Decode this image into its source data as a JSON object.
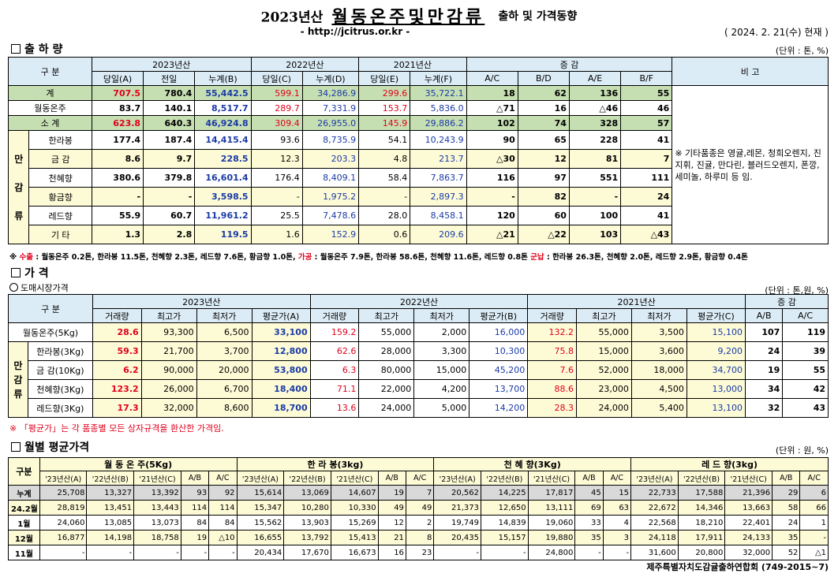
{
  "header": {
    "year_label": "2023년산",
    "main_title": "월동온주및만감류",
    "sub_title": "출하 및 가격동향",
    "url": "- http://jcitrus.or.kr -",
    "date": "( 2024.  2. 21(수) 현재 )"
  },
  "shipment": {
    "section_title": "출 하 량",
    "unit": "(단위 : 톤, %)",
    "h_gubun": "구  분",
    "h_2023": "2023년산",
    "h_2022": "2022년산",
    "h_2021": "2021년산",
    "h_change": "증    감",
    "h_note": "비 고",
    "cols": [
      "당일(A)",
      "전일",
      "누계(B)",
      "당일(C)",
      "누계(D)",
      "당일(E)",
      "누계(F)",
      "A/C",
      "B/D",
      "A/E",
      "B/F"
    ],
    "side_label": "만감류",
    "rows": [
      {
        "label": "계",
        "v": [
          "707.5",
          "780.4",
          "55,442.5",
          "599.1",
          "34,286.9",
          "299.6",
          "35,722.1",
          "18",
          "62",
          "136",
          "55"
        ]
      },
      {
        "label": "월동온주",
        "v": [
          "83.7",
          "140.1",
          "8,517.7",
          "289.7",
          "7,331.9",
          "153.7",
          "5,836.0",
          "△71",
          "16",
          "△46",
          "46"
        ]
      },
      {
        "label": "소  계",
        "v": [
          "623.8",
          "640.3",
          "46,924.8",
          "309.4",
          "26,955.0",
          "145.9",
          "29,886.2",
          "102",
          "74",
          "328",
          "57"
        ]
      },
      {
        "label": "한라봉",
        "v": [
          "177.4",
          "187.4",
          "14,415.4",
          "93.6",
          "8,735.9",
          "54.1",
          "10,243.9",
          "90",
          "65",
          "228",
          "41"
        ]
      },
      {
        "label": "금  감",
        "v": [
          "8.6",
          "9.7",
          "228.5",
          "12.3",
          "203.3",
          "4.8",
          "213.7",
          "△30",
          "12",
          "81",
          "7"
        ]
      },
      {
        "label": "천혜향",
        "v": [
          "380.6",
          "379.8",
          "16,601.4",
          "176.4",
          "8,409.1",
          "58.4",
          "7,863.7",
          "116",
          "97",
          "551",
          "111"
        ]
      },
      {
        "label": "황금향",
        "v": [
          "-",
          "-",
          "3,598.5",
          "-",
          "1,975.2",
          "-",
          "2,897.3",
          "-",
          "82",
          "-",
          "24"
        ]
      },
      {
        "label": "레드향",
        "v": [
          "55.9",
          "60.7",
          "11,961.2",
          "25.5",
          "7,478.6",
          "28.0",
          "8,458.1",
          "120",
          "60",
          "100",
          "41"
        ]
      },
      {
        "label": "기  타",
        "v": [
          "1.3",
          "2.8",
          "119.5",
          "1.6",
          "152.9",
          "0.6",
          "209.6",
          "△21",
          "△22",
          "103",
          "△43"
        ]
      }
    ],
    "remark": "※ 기타품종은 영귤,레몬, 청희오렌지, 진지휘, 진귤, 만다린, 블러드오렌지, 폰깡,세미놀, 하루미 등 임."
  },
  "export_note": {
    "p1": "※ ",
    "k1": "수출",
    "t1": " : 월동온주 0.2톤, 한라봉 11.5톤, 천혜향 2.3톤, 레드향 7.6톤, 황금향 1.0톤, ",
    "k2": "가공",
    "t2": " : 월동온주 7.9톤, 한라봉 58.6톤, 천혜향 11.6톤, 레드향 0.8톤 ",
    "k3": "군납",
    "t3": " : 한라봉 26.3톤, 천혜향 2.0톤, 레드향 2.9톤, 황금향 0.4톤"
  },
  "price": {
    "section_title": "가    격",
    "sub_title": "도매시장가격",
    "unit": "(단위 : 톤,원, %)",
    "h_gubun": "구  분",
    "h_2023": "2023년산",
    "h_2022": "2022년산",
    "h_2021": "2021년산",
    "h_change": "증   감",
    "cols": [
      "거래량",
      "최고가",
      "최저가",
      "평균가(A)",
      "거래량",
      "최고가",
      "최저가",
      "평균가(B)",
      "거래량",
      "최고가",
      "최저가",
      "평균가(C)",
      "A/B",
      "A/C"
    ],
    "side_label": "만감류",
    "rows": [
      {
        "label": "월동온주(5Kg)",
        "v": [
          "28.6",
          "93,300",
          "6,500",
          "33,100",
          "159.2",
          "55,000",
          "2,000",
          "16,000",
          "132.2",
          "55,000",
          "3,500",
          "15,100",
          "107",
          "119"
        ]
      },
      {
        "label": "한라봉(3Kg)",
        "v": [
          "59.3",
          "21,700",
          "3,700",
          "12,800",
          "62.6",
          "28,000",
          "3,300",
          "10,300",
          "75.8",
          "15,000",
          "3,600",
          "9,200",
          "24",
          "39"
        ]
      },
      {
        "label": "금 감(10Kg)",
        "v": [
          "6.2",
          "90,000",
          "20,000",
          "53,800",
          "6.3",
          "80,000",
          "15,000",
          "45,200",
          "7.6",
          "52,000",
          "18,000",
          "34,700",
          "19",
          "55"
        ]
      },
      {
        "label": "천혜향(3Kg)",
        "v": [
          "123.2",
          "26,000",
          "6,700",
          "18,400",
          "71.1",
          "22,000",
          "4,200",
          "13,700",
          "88.6",
          "23,000",
          "4,500",
          "13,000",
          "34",
          "42"
        ]
      },
      {
        "label": "레드향(3Kg)",
        "v": [
          "17.3",
          "32,000",
          "8,600",
          "18,700",
          "13.6",
          "24,000",
          "5,000",
          "14,200",
          "28.3",
          "24,000",
          "5,400",
          "13,100",
          "32",
          "43"
        ]
      }
    ],
    "note": "※ 「평균가」는 각 품종별 모든 상자규격을 환산한 가격임."
  },
  "monthly": {
    "section_title": "월별 평균가격",
    "unit": "(단위 : 원, %)",
    "h_gubun": "구분",
    "groups": [
      "월 동 온 주(5Kg)",
      "한  라  봉(3kg)",
      "천 혜  향(3Kg)",
      "레 드  향(3kg)"
    ],
    "sub_cols": [
      "'23년산(A)",
      "'22년산(B)",
      "'21년산(C)",
      "A/B",
      "A/C"
    ],
    "rows": [
      {
        "label": "누계",
        "v": [
          "25,708",
          "13,327",
          "13,392",
          "93",
          "92",
          "15,614",
          "13,069",
          "14,607",
          "19",
          "7",
          "20,562",
          "14,225",
          "17,817",
          "45",
          "15",
          "22,733",
          "17,588",
          "21,396",
          "29",
          "6"
        ]
      },
      {
        "label": "24.2월",
        "v": [
          "28,819",
          "13,451",
          "13,443",
          "114",
          "114",
          "15,347",
          "10,280",
          "10,330",
          "49",
          "49",
          "21,373",
          "12,650",
          "13,111",
          "69",
          "63",
          "22,672",
          "14,346",
          "13,663",
          "58",
          "66"
        ]
      },
      {
        "label": "1월",
        "v": [
          "24,060",
          "13,085",
          "13,073",
          "84",
          "84",
          "15,562",
          "13,903",
          "15,269",
          "12",
          "2",
          "19,749",
          "14,839",
          "19,060",
          "33",
          "4",
          "22,568",
          "18,210",
          "22,401",
          "24",
          "1"
        ]
      },
      {
        "label": "12월",
        "v": [
          "16,877",
          "14,198",
          "18,758",
          "19",
          "△10",
          "16,655",
          "13,792",
          "15,413",
          "21",
          "8",
          "20,435",
          "15,157",
          "19,880",
          "35",
          "3",
          "24,118",
          "17,911",
          "24,133",
          "35",
          "-"
        ]
      },
      {
        "label": "11월",
        "v": [
          "-",
          "-",
          "-",
          "-",
          "-",
          "20,434",
          "17,670",
          "16,673",
          "16",
          "23",
          "-",
          "-",
          "24,800",
          "-",
          "-",
          "31,600",
          "20,800",
          "32,000",
          "52",
          "△1"
        ]
      }
    ]
  },
  "footer": "제주특별자치도감귤출하연합회 (749-2015~7)"
}
